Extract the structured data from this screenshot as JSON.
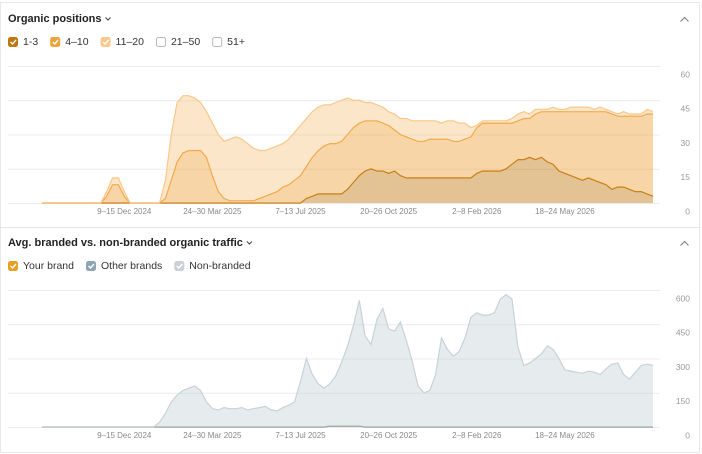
{
  "chart_data": [
    {
      "type": "area",
      "stacked": true,
      "title": "Organic positions",
      "categories": [
        null,
        null,
        null,
        null,
        null,
        null,
        null,
        null,
        null,
        null,
        null,
        null,
        null,
        null,
        "9–15 Dec 2024",
        null,
        null,
        null,
        null,
        null,
        null,
        null,
        null,
        null,
        null,
        null,
        null,
        null,
        null,
        "24–30 Mar 2025",
        null,
        null,
        null,
        null,
        null,
        null,
        null,
        null,
        null,
        null,
        null,
        null,
        null,
        null,
        "7–13 Jul 2025",
        null,
        null,
        null,
        null,
        null,
        null,
        null,
        null,
        null,
        null,
        null,
        null,
        null,
        null,
        "20–26 Oct 2025",
        null,
        null,
        null,
        null,
        null,
        null,
        null,
        null,
        null,
        null,
        null,
        null,
        null,
        null,
        "2–8 Feb 2026",
        null,
        null,
        null,
        null,
        null,
        null,
        null,
        null,
        null,
        null,
        null,
        null,
        null,
        null,
        "18–24 May 2026",
        null,
        null,
        null,
        null,
        null,
        null,
        null,
        null,
        null,
        null,
        null,
        null,
        null,
        null,
        null
      ],
      "series": [
        {
          "name": "1-3",
          "checked": true,
          "color": "#c0770f",
          "values": [
            0,
            0,
            0,
            0,
            0,
            0,
            0,
            0,
            0,
            0,
            0,
            0,
            0,
            0,
            0,
            0,
            0,
            0,
            0,
            0,
            0,
            0,
            0,
            0,
            0,
            0,
            0,
            0,
            0,
            0,
            0,
            0,
            0,
            0,
            0,
            0,
            0,
            0,
            0,
            0,
            0,
            0,
            0,
            0,
            0,
            2,
            3,
            4,
            4,
            4,
            4,
            4,
            6,
            9,
            12,
            14,
            15,
            14,
            14,
            13,
            14,
            12,
            11,
            11,
            11,
            11,
            11,
            11,
            11,
            11,
            11,
            11,
            11,
            11,
            13,
            14,
            14,
            14,
            14,
            15,
            17,
            19,
            19,
            20,
            19,
            20,
            18,
            17,
            14,
            13,
            12,
            11,
            10,
            11,
            10,
            9,
            8,
            6,
            7,
            7,
            6,
            5,
            5,
            4,
            3
          ]
        },
        {
          "name": "4–10",
          "checked": true,
          "color": "#f0a23a",
          "values": [
            0,
            0,
            0,
            0,
            0,
            0,
            0,
            0,
            0,
            0,
            0,
            3,
            8,
            8,
            3,
            0,
            0,
            0,
            0,
            0,
            0,
            2,
            10,
            18,
            22,
            23,
            23,
            23,
            20,
            12,
            5,
            2,
            1,
            1,
            1,
            1,
            1,
            2,
            3,
            4,
            5,
            7,
            8,
            10,
            12,
            14,
            17,
            19,
            21,
            22,
            22,
            23,
            24,
            24,
            23,
            22,
            21,
            22,
            21,
            21,
            18,
            18,
            18,
            17,
            16,
            16,
            17,
            17,
            17,
            17,
            16,
            16,
            17,
            18,
            20,
            21,
            21,
            21,
            21,
            20,
            18,
            17,
            18,
            17,
            20,
            20,
            22,
            23,
            26,
            27,
            28,
            29,
            30,
            29,
            30,
            31,
            32,
            33,
            31,
            31,
            32,
            33,
            33,
            35,
            36
          ]
        },
        {
          "name": "11–20",
          "checked": true,
          "color": "#f9c88a",
          "values": [
            0,
            0,
            0,
            0,
            0,
            0,
            0,
            0,
            0,
            0,
            0,
            2,
            3,
            3,
            2,
            0,
            0,
            0,
            0,
            0,
            0,
            8,
            20,
            26,
            25,
            24,
            23,
            21,
            20,
            23,
            25,
            25,
            27,
            28,
            27,
            25,
            23,
            21,
            20,
            20,
            20,
            19,
            20,
            21,
            22,
            21,
            20,
            19,
            18,
            17,
            18,
            18,
            16,
            12,
            10,
            8,
            8,
            7,
            7,
            6,
            7,
            7,
            8,
            8,
            9,
            9,
            8,
            8,
            7,
            8,
            9,
            8,
            7,
            4,
            1,
            1,
            1,
            1,
            1,
            1,
            2,
            3,
            3,
            2,
            2,
            1,
            1,
            2,
            1,
            1,
            2,
            2,
            2,
            2,
            1,
            2,
            1,
            1,
            1,
            2,
            1,
            1,
            1,
            2,
            1
          ]
        },
        {
          "name": "21–50",
          "checked": false
        },
        {
          "name": "51+",
          "checked": false
        }
      ],
      "ylim": [
        0,
        60
      ],
      "yticks": [
        0,
        15,
        30,
        45,
        60
      ],
      "grid": true
    },
    {
      "type": "area",
      "stacked": true,
      "title": "Avg. branded vs. non-branded organic traffic",
      "categories": [
        null,
        null,
        null,
        null,
        null,
        null,
        null,
        null,
        null,
        null,
        null,
        null,
        null,
        null,
        "9–15 Dec 2024",
        null,
        null,
        null,
        null,
        null,
        null,
        null,
        null,
        null,
        null,
        null,
        null,
        null,
        null,
        "24–30 Mar 2025",
        null,
        null,
        null,
        null,
        null,
        null,
        null,
        null,
        null,
        null,
        null,
        null,
        null,
        null,
        "7–13 Jul 2025",
        null,
        null,
        null,
        null,
        null,
        null,
        null,
        null,
        null,
        null,
        null,
        null,
        null,
        null,
        "20–26 Oct 2025",
        null,
        null,
        null,
        null,
        null,
        null,
        null,
        null,
        null,
        null,
        null,
        null,
        null,
        null,
        "2–8 Feb 2026",
        null,
        null,
        null,
        null,
        null,
        null,
        null,
        null,
        null,
        null,
        null,
        null,
        null,
        null,
        "18–24 May 2026",
        null,
        null,
        null,
        null,
        null,
        null,
        null,
        null,
        null,
        null,
        null,
        null,
        null,
        null,
        null
      ],
      "series": [
        {
          "name": "Your brand",
          "checked": true,
          "color": "#e8a020",
          "values": [
            0,
            0,
            0,
            0,
            0,
            0,
            0,
            0,
            0,
            0,
            0,
            0,
            0,
            0,
            0,
            0,
            0,
            0,
            0,
            0,
            0,
            0,
            0,
            0,
            0,
            0,
            0,
            0,
            0,
            0,
            0,
            0,
            0,
            0,
            0,
            0,
            0,
            0,
            0,
            0,
            0,
            0,
            0,
            0,
            0,
            0,
            0,
            0,
            0,
            4,
            4,
            4,
            4,
            4,
            4,
            0,
            0,
            0,
            0,
            0,
            0,
            0,
            0,
            0,
            0,
            0,
            0,
            0,
            0,
            0,
            0,
            0,
            0,
            0,
            0,
            0,
            0,
            0,
            0,
            0,
            0,
            0,
            0,
            0,
            0,
            0,
            0,
            0,
            0,
            0,
            0,
            0,
            0,
            0,
            0,
            0,
            0,
            0,
            0,
            0,
            0,
            0,
            0,
            0,
            0
          ]
        },
        {
          "name": "Other brands",
          "checked": true,
          "color": "#8ea3b4",
          "values": [
            0,
            0,
            0,
            0,
            0,
            0,
            0,
            0,
            0,
            0,
            0,
            0,
            0,
            0,
            0,
            0,
            0,
            0,
            0,
            0,
            0,
            0,
            0,
            0,
            0,
            0,
            0,
            0,
            0,
            0,
            0,
            0,
            0,
            0,
            0,
            0,
            0,
            0,
            0,
            0,
            0,
            0,
            0,
            0,
            0,
            0,
            0,
            0,
            0,
            0,
            0,
            0,
            0,
            0,
            0,
            0,
            0,
            0,
            0,
            0,
            0,
            0,
            0,
            0,
            0,
            0,
            0,
            0,
            0,
            0,
            0,
            0,
            0,
            0,
            0,
            0,
            0,
            0,
            0,
            0,
            0,
            0,
            0,
            0,
            0,
            0,
            0,
            0,
            0,
            0,
            0,
            0,
            0,
            0,
            0,
            0,
            0,
            0,
            0,
            0,
            0,
            0,
            0,
            0,
            0
          ]
        },
        {
          "name": "Non-branded",
          "checked": true,
          "color": "#c8d2d8",
          "values": [
            0,
            0,
            0,
            0,
            0,
            0,
            0,
            0,
            0,
            0,
            0,
            0,
            0,
            0,
            0,
            0,
            0,
            0,
            0,
            0,
            20,
            60,
            110,
            140,
            160,
            170,
            180,
            160,
            110,
            80,
            75,
            85,
            80,
            80,
            85,
            75,
            80,
            85,
            90,
            75,
            70,
            85,
            95,
            110,
            200,
            300,
            230,
            190,
            170,
            185,
            220,
            280,
            350,
            440,
            550,
            400,
            360,
            470,
            520,
            430,
            420,
            460,
            380,
            290,
            180,
            150,
            160,
            230,
            390,
            340,
            310,
            330,
            390,
            480,
            500,
            490,
            490,
            500,
            560,
            580,
            560,
            350,
            270,
            280,
            300,
            320,
            355,
            340,
            300,
            250,
            245,
            240,
            235,
            245,
            240,
            230,
            255,
            275,
            280,
            230,
            210,
            240,
            270,
            275,
            270
          ]
        }
      ],
      "ylim": [
        0,
        600
      ],
      "yticks": [
        0,
        150,
        300,
        450,
        600
      ],
      "grid": true
    }
  ]
}
